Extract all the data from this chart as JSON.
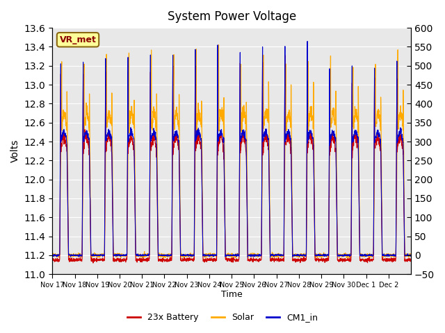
{
  "title": "System Power Voltage",
  "xlabel": "Time",
  "ylabel_left": "Volts",
  "ylim_left": [
    11.0,
    13.6
  ],
  "ylim_right": [
    -50,
    600
  ],
  "yticks_left": [
    11.0,
    11.2,
    11.4,
    11.6,
    11.8,
    12.0,
    12.2,
    12.4,
    12.6,
    12.8,
    13.0,
    13.2,
    13.4,
    13.6
  ],
  "yticks_right": [
    -50,
    0,
    50,
    100,
    150,
    200,
    250,
    300,
    350,
    400,
    450,
    500,
    550,
    600
  ],
  "bg_color": "#e8e8e8",
  "grid_color": "#ffffff",
  "line_colors": {
    "battery": "#cc0000",
    "solar": "#ffaa00",
    "cm1": "#0000cc"
  },
  "legend_labels": [
    "23x Battery",
    "Solar",
    "CM1_in"
  ],
  "vr_met_label": "VR_met",
  "num_days": 16,
  "xtick_labels": [
    "Nov 17",
    "Nov 18",
    "Nov 19",
    "Nov 20",
    "Nov 21",
    "Nov 22",
    "Nov 23",
    "Nov 24",
    "Nov 25",
    "Nov 26",
    "Nov 27",
    "Nov 28",
    "Nov 29",
    "Nov 30",
    "Dec 1",
    "Dec 2"
  ]
}
